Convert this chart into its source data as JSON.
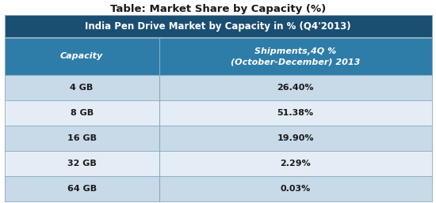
{
  "title": "Table: Market Share by Capacity (%)",
  "header_main": "India Pen Drive Market by Capacity in % (Q4'2013)",
  "col1_header": "Capacity",
  "col2_header": "Shipments,4Q %\n(October-December) 2013",
  "rows": [
    [
      "4 GB",
      "26.40%"
    ],
    [
      "8 GB",
      "51.38%"
    ],
    [
      "16 GB",
      "19.90%"
    ],
    [
      "32 GB",
      "2.29%"
    ],
    [
      "64 GB",
      "0.03%"
    ]
  ],
  "color_header_dark": "#1B4F72",
  "color_col_header": "#2E7DA8",
  "color_row_odd": "#C8D9E8",
  "color_row_even": "#E4EDF5",
  "color_divider": "#8AACBF",
  "color_text_dark": "#1a1a1a",
  "color_text_white": "#FFFFFF",
  "title_fontsize": 9.5,
  "header_fontsize": 8.5,
  "col_header_fontsize": 8,
  "row_fontsize": 8,
  "col_split": 0.365
}
